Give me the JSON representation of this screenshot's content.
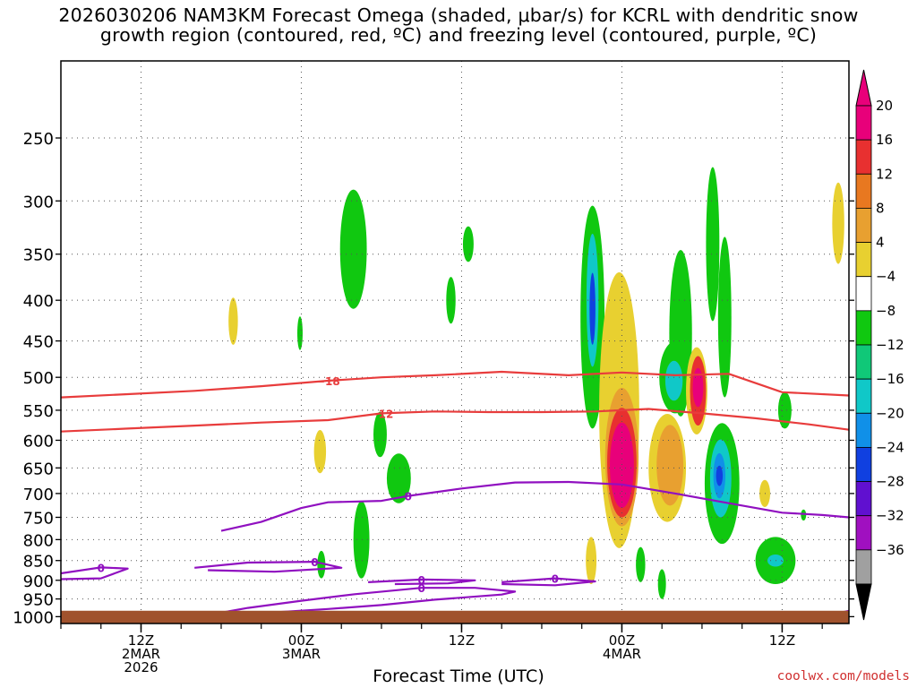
{
  "title_line1": "2026030206 NAM3KM Forecast Omega (shaded, μbar/s) for KCRL with dendritic snow",
  "title_line2": "growth region (contoured, red, ºC) and freezing level (contoured, purple, ºC)",
  "credit": "coolwx.com/models",
  "chart_data": {
    "type": "heatmap",
    "xlabel": "Forecast Time (UTC)",
    "x_ticks": [
      {
        "hour": 6,
        "lines": [
          "12Z",
          "2MAR",
          "2026"
        ]
      },
      {
        "hour": 18,
        "lines": [
          "00Z",
          "3MAR"
        ]
      },
      {
        "hour": 30,
        "lines": [
          "12Z"
        ]
      },
      {
        "hour": 42,
        "lines": [
          "00Z",
          "4MAR"
        ]
      },
      {
        "hour": 54,
        "lines": [
          "12Z"
        ]
      }
    ],
    "xlim_hours": [
      0,
      59
    ],
    "y_ticks_hpa": [
      250,
      300,
      350,
      400,
      450,
      500,
      550,
      600,
      650,
      700,
      750,
      800,
      850,
      900,
      950,
      1000
    ],
    "ylim_hpa": [
      200,
      1020
    ],
    "grid": true,
    "colorbar": {
      "labels": [
        "20",
        "16",
        "12",
        "8",
        "4",
        "−4",
        "−8",
        "−12",
        "−16",
        "−20",
        "−24",
        "−28",
        "−32",
        "−36"
      ],
      "colors": [
        "#e8007a",
        "#e83030",
        "#e87820",
        "#e8a030",
        "#e8d030",
        "#ffffff",
        "#10c810",
        "#10c878",
        "#10c8c8",
        "#1090e8",
        "#1040e0",
        "#6010d0",
        "#a010c0",
        "#a0a0a0"
      ]
    },
    "dgz_contours": [
      {
        "label": "−18",
        "color": "#e83c3c",
        "points": [
          [
            0,
            530
          ],
          [
            5,
            525
          ],
          [
            10,
            520
          ],
          [
            15,
            513
          ],
          [
            20,
            505
          ],
          [
            24,
            500
          ],
          [
            28,
            497
          ],
          [
            33,
            492
          ],
          [
            38,
            497
          ],
          [
            42,
            493
          ],
          [
            46,
            497
          ],
          [
            50,
            495
          ],
          [
            54,
            522
          ],
          [
            59,
            527
          ]
        ]
      },
      {
        "label": "−12",
        "color": "#e83c3c",
        "points": [
          [
            0,
            585
          ],
          [
            5,
            580
          ],
          [
            10,
            575
          ],
          [
            15,
            570
          ],
          [
            20,
            566
          ],
          [
            24,
            555
          ],
          [
            28,
            552
          ],
          [
            32,
            553
          ],
          [
            36,
            553
          ],
          [
            40,
            552
          ],
          [
            44,
            548
          ],
          [
            48,
            555
          ],
          [
            52,
            563
          ],
          [
            56,
            573
          ],
          [
            59,
            582
          ]
        ]
      }
    ],
    "freezing_contours": [
      {
        "label": "0",
        "color": "#9010c0",
        "points": [
          [
            12,
            780
          ],
          [
            15,
            760
          ],
          [
            18,
            730
          ],
          [
            20,
            718
          ],
          [
            24,
            715
          ],
          [
            26,
            705
          ],
          [
            30,
            690
          ],
          [
            34,
            678
          ],
          [
            38,
            677
          ],
          [
            42,
            682
          ],
          [
            46,
            700
          ],
          [
            50,
            720
          ],
          [
            54,
            740
          ],
          [
            57,
            745
          ],
          [
            59,
            750
          ]
        ]
      },
      {
        "label": "0",
        "color": "#9010c0",
        "points": [
          [
            0,
            882
          ],
          [
            3,
            867
          ],
          [
            5,
            870
          ],
          [
            3,
            895
          ],
          [
            0,
            897
          ]
        ]
      },
      {
        "label": "0",
        "color": "#9010c0",
        "points": [
          [
            10,
            868
          ],
          [
            14,
            855
          ],
          [
            19,
            853
          ],
          [
            21,
            868
          ],
          [
            16,
            878
          ],
          [
            11,
            874
          ]
        ]
      },
      {
        "label": "0",
        "color": "#9010c0",
        "points": [
          [
            10,
            1002
          ],
          [
            14,
            975
          ],
          [
            18,
            955
          ],
          [
            22,
            937
          ],
          [
            27,
            920
          ],
          [
            31,
            920
          ],
          [
            34,
            930
          ],
          [
            33,
            938
          ],
          [
            28,
            952
          ],
          [
            24,
            967
          ],
          [
            20,
            978
          ],
          [
            15,
            990
          ]
        ]
      },
      {
        "label": "0",
        "color": "#9010c0",
        "points": [
          [
            23,
            905
          ],
          [
            27,
            898
          ],
          [
            31,
            900
          ],
          [
            29,
            908
          ],
          [
            25,
            910
          ]
        ]
      },
      {
        "label": "0",
        "color": "#9010c0",
        "points": [
          [
            33,
            905
          ],
          [
            37,
            895
          ],
          [
            40,
            903
          ],
          [
            37,
            913
          ],
          [
            33,
            910
          ]
        ]
      },
      {
        "label": "",
        "color": "#9010c0",
        "points": [
          [
            57,
            1000
          ],
          [
            59,
            983
          ]
        ]
      }
    ],
    "omega_blobs": [
      {
        "color": "#10c810",
        "hour": 21.9,
        "hpa": 345,
        "w": 1.0,
        "h": 65
      },
      {
        "color": "#e8d030",
        "hour": 12.9,
        "hpa": 425,
        "w": 0.35,
        "h": 30
      },
      {
        "color": "#10c810",
        "hour": 17.9,
        "hpa": 440,
        "w": 0.2,
        "h": 22
      },
      {
        "color": "#10c810",
        "hour": 29.2,
        "hpa": 400,
        "w": 0.35,
        "h": 28
      },
      {
        "color": "#10c810",
        "hour": 30.5,
        "hpa": 340,
        "w": 0.4,
        "h": 18
      },
      {
        "color": "#e8d030",
        "hour": 19.4,
        "hpa": 620,
        "w": 0.45,
        "h": 40
      },
      {
        "color": "#10c810",
        "hour": 23.9,
        "hpa": 590,
        "w": 0.5,
        "h": 40
      },
      {
        "color": "#10c810",
        "hour": 25.3,
        "hpa": 670,
        "w": 0.9,
        "h": 50
      },
      {
        "color": "#10c810",
        "hour": 22.5,
        "hpa": 800,
        "w": 0.6,
        "h": 95
      },
      {
        "color": "#10c810",
        "hour": 19.5,
        "hpa": 860,
        "w": 0.3,
        "h": 35
      },
      {
        "color": "#10c810",
        "hour": 39.8,
        "hpa": 420,
        "w": 0.9,
        "h": 160
      },
      {
        "color": "#10c8c8",
        "hour": 39.8,
        "hpa": 400,
        "w": 0.45,
        "h": 85
      },
      {
        "color": "#1040e0",
        "hour": 39.8,
        "hpa": 410,
        "w": 0.22,
        "h": 45
      },
      {
        "color": "#e8d030",
        "hour": 41.8,
        "hpa": 550,
        "w": 1.5,
        "h": 270
      },
      {
        "color": "#e8a030",
        "hour": 42.0,
        "hpa": 630,
        "w": 1.25,
        "h": 140
      },
      {
        "color": "#e83030",
        "hour": 42.0,
        "hpa": 640,
        "w": 1.1,
        "h": 110
      },
      {
        "color": "#e8007a",
        "hour": 42.0,
        "hpa": 645,
        "w": 0.9,
        "h": 85
      },
      {
        "color": "#10c810",
        "hour": 46.4,
        "hpa": 440,
        "w": 0.85,
        "h": 120
      },
      {
        "color": "#10c810",
        "hour": 46.0,
        "hpa": 500,
        "w": 1.2,
        "h": 55
      },
      {
        "color": "#10c8c8",
        "hour": 45.9,
        "hpa": 505,
        "w": 0.65,
        "h": 30
      },
      {
        "color": "#e8d030",
        "hour": 45.4,
        "hpa": 650,
        "w": 1.4,
        "h": 110
      },
      {
        "color": "#e8a030",
        "hour": 45.6,
        "hpa": 645,
        "w": 1.0,
        "h": 80
      },
      {
        "color": "#e8d030",
        "hour": 47.6,
        "hpa": 520,
        "w": 0.8,
        "h": 70
      },
      {
        "color": "#e83030",
        "hour": 47.7,
        "hpa": 520,
        "w": 0.6,
        "h": 55
      },
      {
        "color": "#e8007a",
        "hour": 47.7,
        "hpa": 515,
        "w": 0.4,
        "h": 30
      },
      {
        "color": "#10c810",
        "hour": 49.7,
        "hpa": 420,
        "w": 0.5,
        "h": 110
      },
      {
        "color": "#10c810",
        "hour": 48.8,
        "hpa": 340,
        "w": 0.5,
        "h": 85
      },
      {
        "color": "#10c810",
        "hour": 49.5,
        "hpa": 680,
        "w": 1.3,
        "h": 130
      },
      {
        "color": "#10c8c8",
        "hour": 49.4,
        "hpa": 670,
        "w": 0.8,
        "h": 80
      },
      {
        "color": "#1090e8",
        "hour": 49.3,
        "hpa": 665,
        "w": 0.45,
        "h": 45
      },
      {
        "color": "#1040e0",
        "hour": 49.3,
        "hpa": 665,
        "w": 0.25,
        "h": 20
      },
      {
        "color": "#10c810",
        "hour": 53.5,
        "hpa": 850,
        "w": 1.5,
        "h": 60
      },
      {
        "color": "#10c8c8",
        "hour": 53.5,
        "hpa": 850,
        "w": 0.6,
        "h": 15
      },
      {
        "color": "#10c810",
        "hour": 54.2,
        "hpa": 550,
        "w": 0.5,
        "h": 30
      },
      {
        "color": "#e8d030",
        "hour": 52.7,
        "hpa": 700,
        "w": 0.4,
        "h": 28
      },
      {
        "color": "#10c810",
        "hour": 43.4,
        "hpa": 860,
        "w": 0.35,
        "h": 45
      },
      {
        "color": "#10c810",
        "hour": 45.0,
        "hpa": 910,
        "w": 0.3,
        "h": 40
      },
      {
        "color": "#e8d030",
        "hour": 39.7,
        "hpa": 850,
        "w": 0.4,
        "h": 60
      },
      {
        "color": "#e8d030",
        "hour": 58.2,
        "hpa": 320,
        "w": 0.45,
        "h": 40
      },
      {
        "color": "#10c810",
        "hour": 55.6,
        "hpa": 745,
        "w": 0.2,
        "h": 12
      }
    ],
    "surface_color": "#a0522d",
    "surface_hpa": 983
  }
}
